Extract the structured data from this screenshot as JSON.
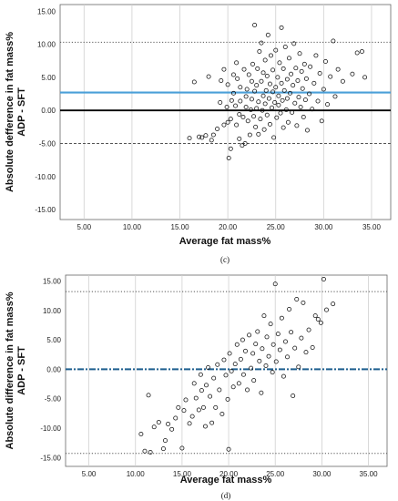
{
  "chart_data": [
    {
      "type": "scatter",
      "panel_label": "(c)",
      "xlabel": "Average fat mass%",
      "ylabel": "Absolute defference in fat mass%",
      "ylabel2": "ADP - SFT",
      "xlim": [
        2.5,
        37.0
      ],
      "ylim": [
        -16.5,
        16.0
      ],
      "x_ticks": [
        "5.00",
        "10.00",
        "15.00",
        "20.00",
        "25.00",
        "30.00",
        "35.00"
      ],
      "x_tick_values": [
        5,
        10,
        15,
        20,
        25,
        30,
        35
      ],
      "y_ticks": [
        "15.00",
        "10.00",
        "5.00",
        "0.00",
        "-5.00",
        "-10.00",
        "-15.00"
      ],
      "y_tick_values": [
        15,
        10,
        5,
        0,
        -5,
        -10,
        -15
      ],
      "grid": "vertical",
      "reference_lines": [
        {
          "kind": "upper-limit",
          "y": 10.3,
          "style": "dotted",
          "color": "#555555"
        },
        {
          "kind": "mean-bias",
          "y": 2.7,
          "style": "solid",
          "color": "#4a9fd8"
        },
        {
          "kind": "zero",
          "y": 0.0,
          "style": "solid",
          "color": "#000000"
        },
        {
          "kind": "lower-limit",
          "y": -5.0,
          "style": "dashed",
          "color": "#555555"
        }
      ],
      "points": [
        [
          16,
          -4.2
        ],
        [
          16.5,
          4.3
        ],
        [
          17,
          -4
        ],
        [
          17.3,
          -4.1
        ],
        [
          17.7,
          -3.8
        ],
        [
          18,
          5.1
        ],
        [
          18.5,
          -3.7
        ],
        [
          18.3,
          -4.5
        ],
        [
          18.9,
          -2.8
        ],
        [
          19.2,
          1.2
        ],
        [
          19.3,
          4.5
        ],
        [
          19.6,
          -2.2
        ],
        [
          19.6,
          6.2
        ],
        [
          19.9,
          0.5
        ],
        [
          20.0,
          -1.8
        ],
        [
          20.0,
          3.9
        ],
        [
          20.1,
          -7.2
        ],
        [
          20.3,
          -5.8
        ],
        [
          20.3,
          -1.3
        ],
        [
          20.4,
          1.5
        ],
        [
          20.6,
          2.6
        ],
        [
          20.6,
          5.4
        ],
        [
          20.8,
          0.7
        ],
        [
          20.9,
          -2.2
        ],
        [
          20.9,
          7.2
        ],
        [
          21,
          4.8
        ],
        [
          21.2,
          -4.3
        ],
        [
          21.2,
          -0.6
        ],
        [
          21.3,
          1.4
        ],
        [
          21.3,
          3.5
        ],
        [
          21.5,
          -5.3
        ],
        [
          21.6,
          -1
        ],
        [
          21.7,
          6.2
        ],
        [
          21.8,
          -5.0
        ],
        [
          21.9,
          0.5
        ],
        [
          21.9,
          2.1
        ],
        [
          22.0,
          3.2
        ],
        [
          22.1,
          -1.6
        ],
        [
          22.2,
          5.4
        ],
        [
          22.3,
          -3.7
        ],
        [
          22.4,
          0.1
        ],
        [
          22.5,
          1.7
        ],
        [
          22.5,
          4.4
        ],
        [
          22.6,
          7.0
        ],
        [
          22.7,
          -0.9
        ],
        [
          22.8,
          2.9
        ],
        [
          22.8,
          12.9
        ],
        [
          22.9,
          -2.5
        ],
        [
          23.0,
          0.3
        ],
        [
          23.0,
          3.8
        ],
        [
          23.1,
          6.3
        ],
        [
          23.2,
          -3.6
        ],
        [
          23.2,
          1.3
        ],
        [
          23.3,
          8.9
        ],
        [
          23.4,
          -1.3
        ],
        [
          23.5,
          4.4
        ],
        [
          23.5,
          10.2
        ],
        [
          23.6,
          0.0
        ],
        [
          23.7,
          2.2
        ],
        [
          23.7,
          5.7
        ],
        [
          23.8,
          -2.9
        ],
        [
          23.9,
          1.0
        ],
        [
          23.9,
          7.6
        ],
        [
          24.0,
          3.0
        ],
        [
          24.1,
          -0.7
        ],
        [
          24.1,
          5.2
        ],
        [
          24.2,
          11.4
        ],
        [
          24.3,
          1.8
        ],
        [
          24.4,
          -2.1
        ],
        [
          24.4,
          4.0
        ],
        [
          24.5,
          8.3
        ],
        [
          24.6,
          0.4
        ],
        [
          24.7,
          2.8
        ],
        [
          24.7,
          6.1
        ],
        [
          24.8,
          -4.1
        ],
        [
          24.9,
          1.2
        ],
        [
          25.0,
          3.5
        ],
        [
          25.0,
          9.1
        ],
        [
          25.1,
          -1.1
        ],
        [
          25.2,
          5.0
        ],
        [
          25.3,
          0.8
        ],
        [
          25.3,
          2.2
        ],
        [
          25.4,
          7.2
        ],
        [
          25.5,
          -0.4
        ],
        [
          25.6,
          4.1
        ],
        [
          25.6,
          12.5
        ],
        [
          25.7,
          1.5
        ],
        [
          25.8,
          -2.6
        ],
        [
          25.8,
          6.3
        ],
        [
          25.9,
          3.0
        ],
        [
          26.0,
          9.6
        ],
        [
          26.1,
          0.1
        ],
        [
          26.2,
          4.7
        ],
        [
          26.2,
          1.8
        ],
        [
          26.3,
          -1.8
        ],
        [
          26.4,
          7.9
        ],
        [
          26.5,
          2.6
        ],
        [
          26.6,
          5.5
        ],
        [
          26.7,
          -0.3
        ],
        [
          26.8,
          3.8
        ],
        [
          26.9,
          10.1
        ],
        [
          27.0,
          1.1
        ],
        [
          27.1,
          6.4
        ],
        [
          27.2,
          -2.3
        ],
        [
          27.3,
          4.5
        ],
        [
          27.4,
          2.0
        ],
        [
          27.5,
          8.6
        ],
        [
          27.6,
          0.5
        ],
        [
          27.7,
          5.9
        ],
        [
          27.8,
          3.3
        ],
        [
          27.9,
          -1.0
        ],
        [
          28.0,
          7.0
        ],
        [
          28.1,
          1.6
        ],
        [
          28.2,
          4.8
        ],
        [
          28.3,
          -3.0
        ],
        [
          28.5,
          2.5
        ],
        [
          28.6,
          6.6
        ],
        [
          28.8,
          0.2
        ],
        [
          29.0,
          4.1
        ],
        [
          29.2,
          8.3
        ],
        [
          29.4,
          1.4
        ],
        [
          29.6,
          5.6
        ],
        [
          29.8,
          -1.6
        ],
        [
          30.0,
          3.2
        ],
        [
          30.2,
          7.4
        ],
        [
          30.4,
          0.9
        ],
        [
          30.7,
          5.1
        ],
        [
          31.0,
          10.5
        ],
        [
          31.2,
          2.1
        ],
        [
          31.5,
          6.2
        ],
        [
          32.0,
          4.4
        ],
        [
          33.0,
          5.5
        ],
        [
          33.5,
          8.7
        ],
        [
          34.0,
          8.9
        ],
        [
          34.3,
          5.0
        ]
      ]
    },
    {
      "type": "scatter",
      "panel_label": "(d)",
      "xlabel": "Average fat mass%",
      "ylabel": "Absolute difference in fat mass%",
      "ylabel2": "ADP - SFT",
      "xlim": [
        2.5,
        37.0
      ],
      "ylim": [
        -16.5,
        16.0
      ],
      "x_ticks": [
        "5.00",
        "10.00",
        "15.00",
        "20.00",
        "25.00",
        "30.00",
        "35.00"
      ],
      "x_tick_values": [
        5,
        10,
        15,
        20,
        25,
        30,
        35
      ],
      "y_ticks": [
        "15.00",
        "10.00",
        "5.00",
        "0.00",
        "-5.00",
        "-10.00",
        "-15.00"
      ],
      "y_tick_values": [
        15,
        10,
        5,
        0,
        -5,
        -10,
        -15
      ],
      "grid": "vertical",
      "reference_lines": [
        {
          "kind": "upper-limit",
          "y": 13.2,
          "style": "dotted",
          "color": "#555555"
        },
        {
          "kind": "mean-bias",
          "y": 0.0,
          "style": "dashdot",
          "color": "#1f5f8f"
        },
        {
          "kind": "lower-limit",
          "y": -14.3,
          "style": "dotted",
          "color": "#555555"
        }
      ],
      "points": [
        [
          10.6,
          -11
        ],
        [
          11,
          -13.9
        ],
        [
          11.4,
          -4.4
        ],
        [
          11.6,
          -14.1
        ],
        [
          12,
          -9.8
        ],
        [
          12.5,
          -9
        ],
        [
          13,
          -13.5
        ],
        [
          13.2,
          -12.1
        ],
        [
          13.5,
          -9.3
        ],
        [
          13.9,
          -10.2
        ],
        [
          14.3,
          -8.3
        ],
        [
          14.6,
          -6.5
        ],
        [
          15.0,
          -13.4
        ],
        [
          15.2,
          -7.0
        ],
        [
          15.4,
          -5.2
        ],
        [
          15.8,
          -9.2
        ],
        [
          16.1,
          -8.0
        ],
        [
          16.3,
          -2.4
        ],
        [
          16.5,
          -4.9
        ],
        [
          16.8,
          -6.9
        ],
        [
          17.0,
          -0.9
        ],
        [
          17.1,
          -3.6
        ],
        [
          17.3,
          -6.5
        ],
        [
          17.5,
          -9.7
        ],
        [
          17.6,
          -2.7
        ],
        [
          17.8,
          0.3
        ],
        [
          18.0,
          -4.6
        ],
        [
          18.2,
          -9.1
        ],
        [
          18.4,
          -1.5
        ],
        [
          18.6,
          -6.5
        ],
        [
          18.8,
          0.8
        ],
        [
          19.0,
          -3.5
        ],
        [
          19.3,
          -7.6
        ],
        [
          19.5,
          1.6
        ],
        [
          19.7,
          -1.0
        ],
        [
          19.9,
          -5.1
        ],
        [
          20.0,
          -13.6
        ],
        [
          20.1,
          2.7
        ],
        [
          20.3,
          -0.3
        ],
        [
          20.5,
          -3.0
        ],
        [
          20.7,
          0.9
        ],
        [
          20.9,
          4.2
        ],
        [
          21.1,
          -2.4
        ],
        [
          21.3,
          1.7
        ],
        [
          21.5,
          5.0
        ],
        [
          21.6,
          -0.9
        ],
        [
          21.8,
          3.1
        ],
        [
          22.0,
          -3.5
        ],
        [
          22.2,
          5.8
        ],
        [
          22.4,
          0.2
        ],
        [
          22.6,
          2.7
        ],
        [
          22.7,
          -1.9
        ],
        [
          22.9,
          4.3
        ],
        [
          23.1,
          6.4
        ],
        [
          23.3,
          1.4
        ],
        [
          23.5,
          -4.0
        ],
        [
          23.6,
          3.5
        ],
        [
          23.8,
          9.1
        ],
        [
          24.0,
          0.6
        ],
        [
          24.1,
          5.5
        ],
        [
          24.3,
          2.2
        ],
        [
          24.5,
          7.7
        ],
        [
          24.7,
          -0.5
        ],
        [
          24.8,
          4.2
        ],
        [
          25.0,
          14.5
        ],
        [
          25.1,
          1.3
        ],
        [
          25.3,
          6.0
        ],
        [
          25.5,
          3.3
        ],
        [
          25.7,
          8.7
        ],
        [
          25.9,
          -1.2
        ],
        [
          26.1,
          4.7
        ],
        [
          26.3,
          2.1
        ],
        [
          26.5,
          10.2
        ],
        [
          26.7,
          6.3
        ],
        [
          26.9,
          -4.5
        ],
        [
          27.1,
          3.6
        ],
        [
          27.3,
          11.9
        ],
        [
          27.5,
          0.4
        ],
        [
          27.8,
          5.3
        ],
        [
          28.0,
          11.3
        ],
        [
          28.3,
          2.9
        ],
        [
          28.6,
          6.7
        ],
        [
          29.0,
          3.7
        ],
        [
          29.3,
          9.1
        ],
        [
          29.6,
          8.5
        ],
        [
          29.9,
          7.9
        ],
        [
          30.2,
          15.3
        ],
        [
          30.5,
          10.1
        ],
        [
          31.2,
          11.1
        ]
      ]
    }
  ]
}
